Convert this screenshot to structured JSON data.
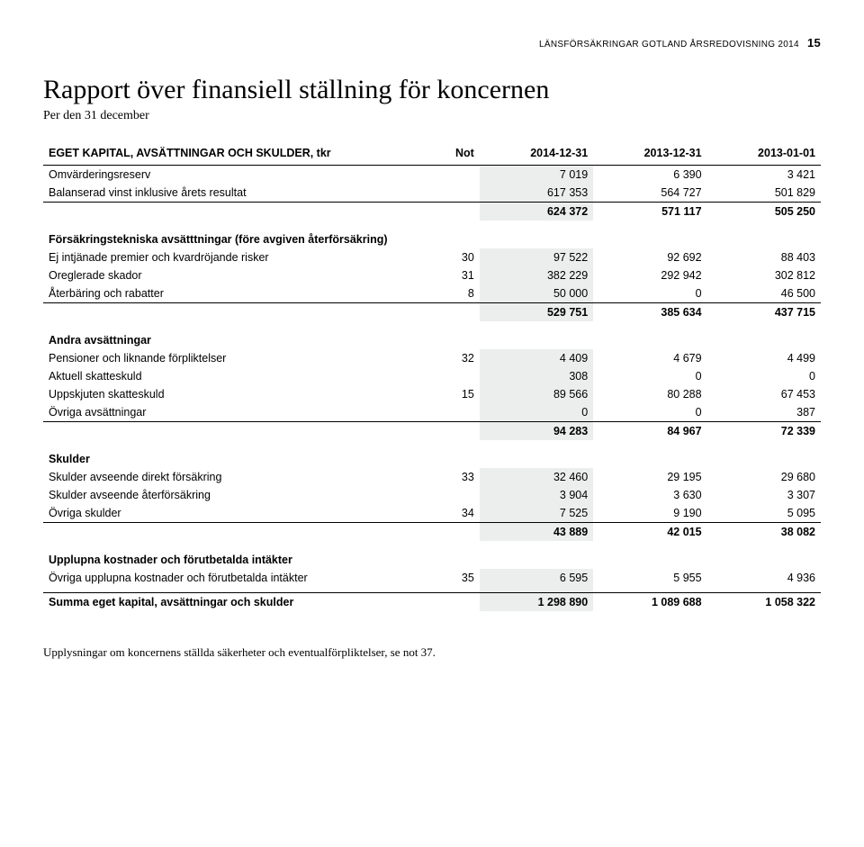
{
  "header": {
    "text": "LÄNSFÖRSÄKRINGAR GOTLAND ÅRSREDOVISNING 2014",
    "page": "15"
  },
  "title": "Rapport över finansiell ställning för koncernen",
  "subtitle": "Per den 31 december",
  "table": {
    "head": [
      "EGET KAPITAL, AVSÄTTNINGAR OCH SKULDER, tkr",
      "Not",
      "2014-12-31",
      "2013-12-31",
      "2013-01-01"
    ],
    "highlight_col": 2,
    "rows": [
      {
        "type": "data",
        "label": "Omvärderingsreserv",
        "not": "",
        "v": [
          "7 019",
          "6 390",
          "3 421"
        ]
      },
      {
        "type": "data",
        "label": "Balanserad vinst inklusive årets resultat",
        "not": "",
        "v": [
          "617 353",
          "564 727",
          "501 829"
        ]
      },
      {
        "type": "subtotal",
        "label": "",
        "not": "",
        "v": [
          "624 372",
          "571 117",
          "505 250"
        ]
      },
      {
        "type": "section",
        "label": "Försäkringstekniska avsätttningar (före avgiven återförsäkring)"
      },
      {
        "type": "data",
        "label": "Ej intjänade premier och kvardröjande risker",
        "not": "30",
        "v": [
          "97 522",
          "92 692",
          "88 403"
        ]
      },
      {
        "type": "data",
        "label": "Oreglerade skador",
        "not": "31",
        "v": [
          "382 229",
          "292 942",
          "302 812"
        ]
      },
      {
        "type": "data",
        "label": "Återbäring och rabatter",
        "not": "8",
        "v": [
          "50 000",
          "0",
          "46 500"
        ]
      },
      {
        "type": "subtotal",
        "label": "",
        "not": "",
        "v": [
          "529 751",
          "385 634",
          "437 715"
        ]
      },
      {
        "type": "section",
        "label": "Andra avsättningar"
      },
      {
        "type": "data",
        "label": "Pensioner och liknande förpliktelser",
        "not": "32",
        "v": [
          "4 409",
          "4 679",
          "4 499"
        ]
      },
      {
        "type": "data",
        "label": "Aktuell skatteskuld",
        "not": "",
        "v": [
          "308",
          "0",
          "0"
        ]
      },
      {
        "type": "data",
        "label": "Uppskjuten skatteskuld",
        "not": "15",
        "v": [
          "89 566",
          "80 288",
          "67 453"
        ]
      },
      {
        "type": "data",
        "label": "Övriga avsättningar",
        "not": "",
        "v": [
          "0",
          "0",
          "387"
        ]
      },
      {
        "type": "subtotal",
        "label": "",
        "not": "",
        "v": [
          "94 283",
          "84 967",
          "72 339"
        ]
      },
      {
        "type": "section",
        "label": "Skulder"
      },
      {
        "type": "data",
        "label": "Skulder avseende direkt försäkring",
        "not": "33",
        "v": [
          "32 460",
          "29 195",
          "29 680"
        ]
      },
      {
        "type": "data",
        "label": "Skulder avseende återförsäkring",
        "not": "",
        "v": [
          "3 904",
          "3 630",
          "3 307"
        ]
      },
      {
        "type": "data",
        "label": "Övriga skulder",
        "not": "34",
        "v": [
          "7 525",
          "9 190",
          "5 095"
        ]
      },
      {
        "type": "subtotal",
        "label": "",
        "not": "",
        "v": [
          "43 889",
          "42 015",
          "38 082"
        ]
      },
      {
        "type": "section",
        "label": "Upplupna kostnader och förutbetalda intäkter"
      },
      {
        "type": "data",
        "label": "Övriga upplupna kostnader och förutbetalda intäkter",
        "not": "35",
        "v": [
          "6 595",
          "5 955",
          "4 936"
        ]
      },
      {
        "type": "spacer"
      },
      {
        "type": "grand",
        "label": "Summa eget kapital, avsättningar och skulder",
        "not": "",
        "v": [
          "1 298 890",
          "1 089 688",
          "1 058 322"
        ]
      }
    ]
  },
  "footnote": "Upplysningar om koncernens ställda säkerheter och eventualförpliktelser, se not 37."
}
